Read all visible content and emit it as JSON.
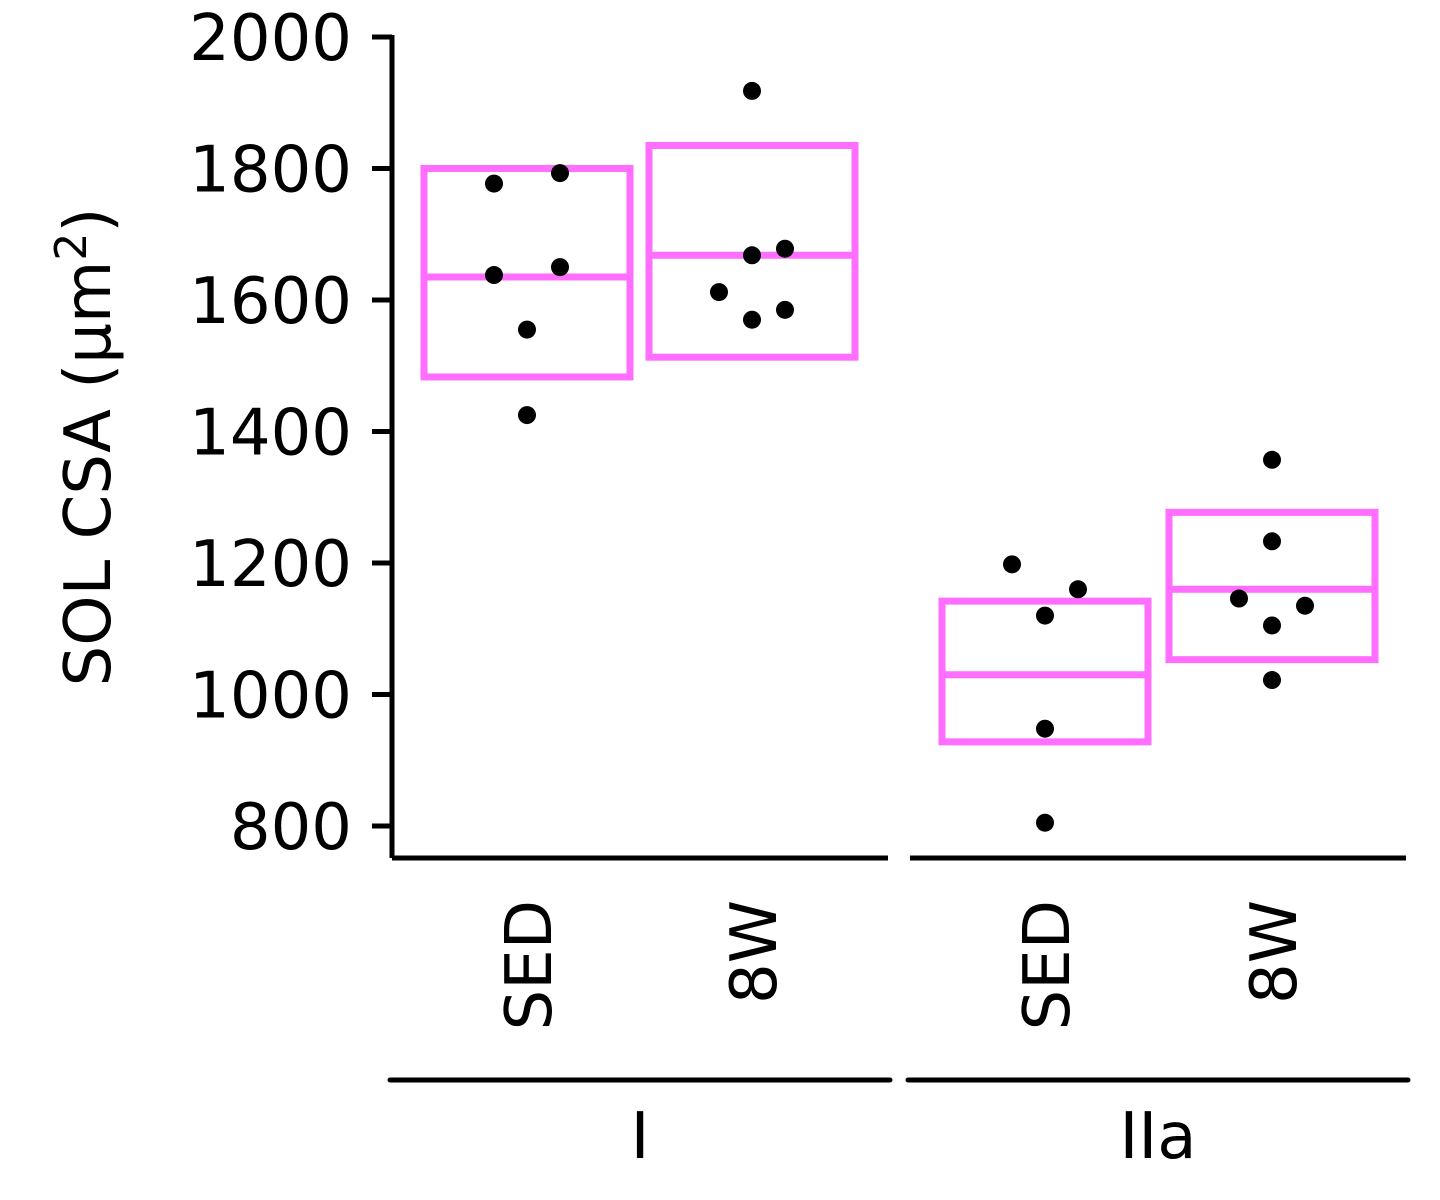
{
  "chart_data": {
    "type": "scatter",
    "title": "",
    "xlabel": "",
    "ylabel": "SOL CSA (µm²)",
    "ylabel_base": "SOL CSA (µm",
    "ylabel_sup": "2",
    "ylabel_close": ")",
    "ylim": [
      752,
      2000
    ],
    "yticks": [
      800,
      1000,
      1200,
      1400,
      1600,
      1800,
      2000
    ],
    "box_color": "#ff6eff",
    "point_color": "#000000",
    "groups": [
      {
        "name": "I",
        "categories": [
          {
            "label": "SED",
            "mean": 1635,
            "box_low": 1483,
            "box_high": 1800,
            "points": [
              {
                "y": 1777,
                "j": -1
              },
              {
                "y": 1793,
                "j": 1
              },
              {
                "y": 1638,
                "j": -1
              },
              {
                "y": 1650,
                "j": 1
              },
              {
                "y": 1555,
                "j": 0
              },
              {
                "y": 1425,
                "j": 0
              }
            ]
          },
          {
            "label": "8W",
            "mean": 1668,
            "box_low": 1513,
            "box_high": 1835,
            "points": [
              {
                "y": 1918,
                "j": 0
              },
              {
                "y": 1668,
                "j": 0
              },
              {
                "y": 1678,
                "j": 1
              },
              {
                "y": 1612,
                "j": -1
              },
              {
                "y": 1570,
                "j": 0
              },
              {
                "y": 1585,
                "j": 1
              }
            ]
          }
        ]
      },
      {
        "name": "IIa",
        "categories": [
          {
            "label": "SED",
            "mean": 1030,
            "box_low": 928,
            "box_high": 1142,
            "points": [
              {
                "y": 1198,
                "j": -1
              },
              {
                "y": 1160,
                "j": 1
              },
              {
                "y": 1120,
                "j": 0
              },
              {
                "y": 948,
                "j": 0
              },
              {
                "y": 805,
                "j": 0
              }
            ]
          },
          {
            "label": "8W",
            "mean": 1160,
            "box_low": 1053,
            "box_high": 1277,
            "points": [
              {
                "y": 1357,
                "j": 0
              },
              {
                "y": 1233,
                "j": 0
              },
              {
                "y": 1146,
                "j": -1
              },
              {
                "y": 1135,
                "j": 1
              },
              {
                "y": 1105,
                "j": 0
              },
              {
                "y": 1022,
                "j": 0
              }
            ]
          }
        ]
      }
    ]
  }
}
